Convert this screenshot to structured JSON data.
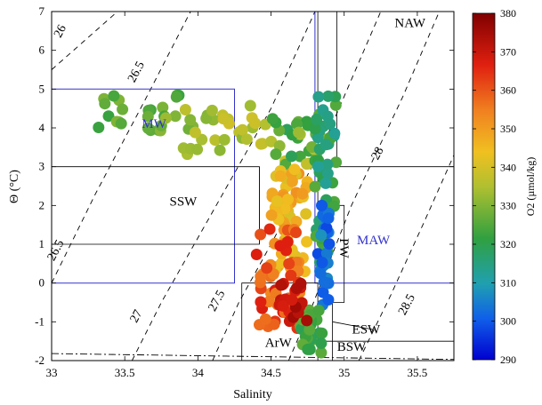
{
  "chart_data": {
    "type": "scatter",
    "xlabel": "Salinity",
    "ylabel": "Θ (°C)",
    "xlim": [
      33,
      35.75
    ],
    "ylim": [
      -2,
      7
    ],
    "xticks": [
      "33",
      "33.5",
      "34",
      "34.5",
      "35",
      "35.5"
    ],
    "yticks": [
      "-2",
      "-1",
      "0",
      "1",
      "2",
      "3",
      "4",
      "5",
      "6",
      "7"
    ],
    "xtick_values": [
      33,
      33.5,
      34,
      34.5,
      35,
      35.5
    ],
    "ytick_values": [
      -2,
      -1,
      0,
      1,
      2,
      3,
      4,
      5,
      6,
      7
    ],
    "colorbar": {
      "label": "O2 (µmol/kg)",
      "min": 290,
      "max": 380,
      "ticks": [
        "290",
        "300",
        "310",
        "320",
        "330",
        "340",
        "350",
        "360",
        "370",
        "380"
      ],
      "tick_values": [
        290,
        300,
        310,
        320,
        330,
        340,
        350,
        360,
        370,
        380
      ]
    },
    "density_contours": [
      {
        "label": "26",
        "points": [
          [
            33.0,
            5.5
          ],
          [
            33.45,
            7.0
          ]
        ],
        "label_at": [
          33.08,
          6.45
        ]
      },
      {
        "label": "26.5",
        "points": [
          [
            33.0,
            0.0
          ],
          [
            33.3,
            2.3
          ],
          [
            33.65,
            4.8
          ],
          [
            33.95,
            7.0
          ]
        ],
        "label_at": [
          33.6,
          5.4
        ]
      },
      {
        "label": "26.5",
        "points": [
          [
            33.0,
            0.0
          ],
          [
            33.3,
            2.3
          ],
          [
            33.65,
            4.8
          ],
          [
            33.95,
            7.0
          ]
        ],
        "label_at": [
          33.05,
          0.8
        ]
      },
      {
        "label": "27",
        "points": [
          [
            33.55,
            -2.0
          ],
          [
            33.75,
            -0.5
          ],
          [
            34.05,
            1.5
          ],
          [
            34.5,
            4.5
          ],
          [
            34.8,
            7.0
          ]
        ],
        "label_at": [
          33.6,
          -0.9
        ]
      },
      {
        "label": "27.5",
        "points": [
          [
            34.1,
            -2.0
          ],
          [
            34.28,
            -0.5
          ],
          [
            34.5,
            1.0
          ],
          [
            34.85,
            3.5
          ],
          [
            35.25,
            7.0
          ]
        ],
        "label_at": [
          34.15,
          -0.5
        ]
      },
      {
        "label": "28",
        "points": [
          [
            34.62,
            -2.0
          ],
          [
            34.78,
            -0.6
          ],
          [
            35.05,
            2.0
          ],
          [
            35.4,
            4.8
          ],
          [
            35.65,
            7.0
          ]
        ],
        "label_at": [
          35.25,
          3.3
        ]
      },
      {
        "label": "28.5",
        "points": [
          [
            35.1,
            -2.0
          ],
          [
            35.32,
            -0.3
          ],
          [
            35.55,
            1.6
          ],
          [
            35.75,
            3.3
          ]
        ],
        "label_at": [
          35.45,
          -0.6
        ]
      }
    ],
    "freezing_line": [
      [
        33.0,
        -1.82
      ],
      [
        35.75,
        -1.97
      ]
    ],
    "water_masses": [
      {
        "label": "MW",
        "color": "#3333cc",
        "at": [
          33.7,
          4.0
        ]
      },
      {
        "label": "SSW",
        "color": "#000000",
        "at": [
          33.9,
          2.0
        ]
      },
      {
        "label": "MAW",
        "color": "#3333cc",
        "at": [
          35.2,
          1.0
        ]
      },
      {
        "label": "NAW",
        "color": "#000000",
        "at": [
          35.45,
          6.6
        ]
      },
      {
        "label": "PW",
        "color": "#000000",
        "at": [
          34.97,
          0.9
        ]
      },
      {
        "label": "ESW",
        "color": "#000000",
        "at": [
          35.15,
          -1.3
        ]
      },
      {
        "label": "ArW",
        "color": "#000000",
        "at": [
          34.55,
          -1.65
        ]
      },
      {
        "label": "BSW",
        "color": "#000000",
        "at": [
          35.05,
          -1.75
        ]
      }
    ],
    "box_lines_blue": [
      [
        [
          33.0,
          5.0
        ],
        [
          34.25,
          5.0
        ],
        [
          34.25,
          0.0
        ],
        [
          33.0,
          0.0
        ]
      ],
      [
        [
          34.8,
          7.0
        ],
        [
          34.8,
          0.0
        ],
        [
          35.75,
          0.0
        ]
      ]
    ],
    "box_lines_black": [
      [
        [
          33.0,
          3.0
        ],
        [
          34.42,
          3.0
        ],
        [
          34.42,
          1.0
        ],
        [
          33.0,
          1.0
        ]
      ],
      [
        [
          34.42,
          3.0
        ],
        [
          34.42,
          1.0
        ]
      ],
      [
        [
          34.82,
          7.0
        ],
        [
          34.82,
          2.0
        ]
      ],
      [
        [
          34.95,
          7.0
        ],
        [
          34.95,
          3.0
        ],
        [
          35.75,
          3.0
        ]
      ],
      [
        [
          34.82,
          2.0
        ],
        [
          35.0,
          2.0
        ],
        [
          35.0,
          -0.5
        ],
        [
          34.82,
          -0.5
        ]
      ],
      [
        [
          34.3,
          -2.0
        ],
        [
          34.3,
          0.0
        ],
        [
          34.82,
          0.0
        ]
      ],
      [
        [
          34.82,
          0.0
        ],
        [
          34.82,
          -1.5
        ],
        [
          35.75,
          -1.5
        ]
      ],
      [
        [
          34.82,
          -1.5
        ],
        [
          34.82,
          -2.0
        ]
      ],
      [
        [
          34.92,
          -0.5
        ],
        [
          34.92,
          -2.0
        ]
      ],
      [
        [
          34.92,
          -1.0
        ],
        [
          35.2,
          -1.2
        ]
      ]
    ],
    "clusters": [
      {
        "S": [
          33.3,
          33.9
        ],
        "T": [
          4.0,
          4.9
        ],
        "O2": [
          322,
          330
        ],
        "n": 18
      },
      {
        "S": [
          33.4,
          34.0
        ],
        "T": [
          3.9,
          4.3
        ],
        "O2": [
          325,
          333
        ],
        "n": 10
      },
      {
        "S": [
          33.9,
          34.5
        ],
        "T": [
          3.3,
          4.6
        ],
        "O2": [
          330,
          340
        ],
        "n": 30
      },
      {
        "S": [
          34.5,
          34.85
        ],
        "T": [
          3.0,
          4.3
        ],
        "O2": [
          318,
          338
        ],
        "n": 30
      },
      {
        "S": [
          34.5,
          34.75
        ],
        "T": [
          0.2,
          3.0
        ],
        "O2": [
          340,
          352
        ],
        "n": 60
      },
      {
        "S": [
          34.4,
          34.7
        ],
        "T": [
          -1.2,
          1.5
        ],
        "O2": [
          352,
          368
        ],
        "n": 50
      },
      {
        "S": [
          34.8,
          34.95
        ],
        "T": [
          0.5,
          5.0
        ],
        "O2": [
          312,
          326
        ],
        "n": 50
      },
      {
        "S": [
          34.82,
          34.9
        ],
        "T": [
          -0.6,
          2.2
        ],
        "O2": [
          298,
          308
        ],
        "n": 25
      },
      {
        "S": [
          34.7,
          34.85
        ],
        "T": [
          -1.8,
          -0.4
        ],
        "O2": [
          318,
          328
        ],
        "n": 25
      },
      {
        "S": [
          34.55,
          34.75
        ],
        "T": [
          -1.0,
          0.0
        ],
        "O2": [
          365,
          378
        ],
        "n": 20
      }
    ]
  }
}
